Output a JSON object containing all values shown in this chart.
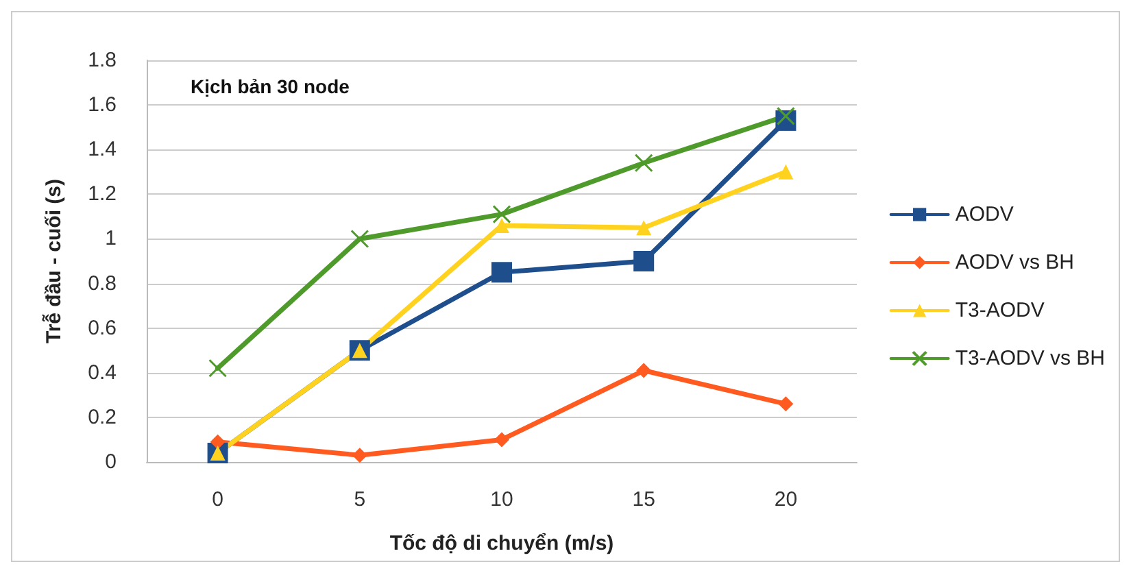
{
  "chart_data": {
    "type": "line",
    "title": "Kịch bản 30 node",
    "xlabel": "Tốc độ di chuyển (m/s)",
    "ylabel": "Trễ đầu - cuối (s)",
    "categories": [
      "0",
      "5",
      "10",
      "15",
      "20"
    ],
    "series": [
      {
        "name": "AODV",
        "color": "#1f4e8c",
        "marker": "square",
        "values": [
          0.04,
          0.5,
          0.85,
          0.9,
          1.53
        ]
      },
      {
        "name": "AODV vs BH",
        "color": "#ff5a1f",
        "marker": "diamond",
        "values": [
          0.09,
          0.03,
          0.1,
          0.41,
          0.26
        ]
      },
      {
        "name": "T3-AODV",
        "color": "#ffd21f",
        "marker": "triangle",
        "values": [
          0.04,
          0.5,
          1.06,
          1.05,
          1.3
        ]
      },
      {
        "name": "T3-AODV vs BH",
        "color": "#4e9a2a",
        "marker": "cross",
        "values": [
          0.42,
          1.0,
          1.11,
          1.34,
          1.55
        ]
      }
    ],
    "ylim": [
      0,
      1.8
    ],
    "yticks": [
      0,
      0.2,
      0.4,
      0.6,
      0.8,
      1,
      1.2,
      1.4,
      1.6,
      1.8
    ],
    "grid": "y",
    "legend": "right"
  }
}
